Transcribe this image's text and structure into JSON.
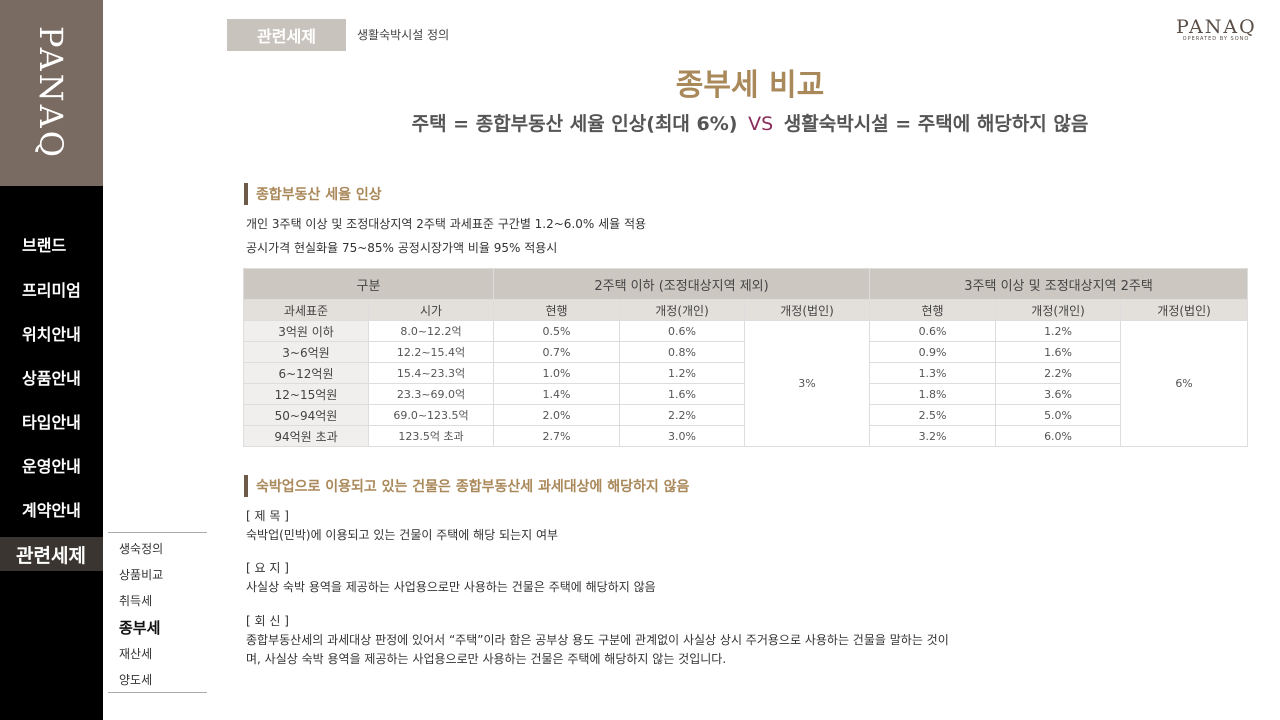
{
  "sidebar": {
    "logo": "PANAQ",
    "items": [
      {
        "label": "브랜드"
      },
      {
        "label": "프리미엄"
      },
      {
        "label": "위치안내"
      },
      {
        "label": "상품안내"
      },
      {
        "label": "타입안내"
      },
      {
        "label": "운영안내"
      },
      {
        "label": "계약안내"
      },
      {
        "label": "관련세제",
        "active": true
      }
    ]
  },
  "submenu": {
    "items": [
      {
        "label": "생숙정의"
      },
      {
        "label": "상품비교"
      },
      {
        "label": "취득세"
      },
      {
        "label": "종부세",
        "active": true
      },
      {
        "label": "재산세"
      },
      {
        "label": "양도세"
      }
    ]
  },
  "header": {
    "tag": "관련세제",
    "sub": "생활숙박시설 정의",
    "brand": "PANAQ",
    "brand_sub": "OPERATED BY SONO"
  },
  "main": {
    "title": "종부세 비교",
    "subtitle_left": "주택 = 종합부동산 세율 인상(최대 6%)",
    "subtitle_vs": "VS",
    "subtitle_right": "생활숙박시설 = 주택에 해당하지 않음",
    "section1": {
      "heading": "종합부동산 세율 인상",
      "line1": "개인 3주택 이상 및 조정대상지역 2주택 과세표준 구간별 1.2~6.0% 세율 적용",
      "line2": "공시가격 현실화율 75~85% 공정시장가액 비율 95% 적용시"
    },
    "table": {
      "group_header": "구분",
      "group_a": "2주택 이하 (조정대상지역 제외)",
      "group_b": "3주택 이상 및 조정대상지역 2주택",
      "sub_headers": [
        "과세표준",
        "시가",
        "현행",
        "개정(개인)",
        "개정(법인)",
        "현행",
        "개정(개인)",
        "개정(법인)"
      ],
      "rows": [
        {
          "base": "3억원 이하",
          "price": "8.0~12.2억",
          "a_cur": "0.5%",
          "a_ind": "0.6%",
          "b_cur": "0.6%",
          "b_ind": "1.2%"
        },
        {
          "base": "3~6억원",
          "price": "12.2~15.4억",
          "a_cur": "0.7%",
          "a_ind": "0.8%",
          "b_cur": "0.9%",
          "b_ind": "1.6%"
        },
        {
          "base": "6~12억원",
          "price": "15.4~23.3억",
          "a_cur": "1.0%",
          "a_ind": "1.2%",
          "b_cur": "1.3%",
          "b_ind": "2.2%"
        },
        {
          "base": "12~15억원",
          "price": "23.3~69.0억",
          "a_cur": "1.4%",
          "a_ind": "1.6%",
          "b_cur": "1.8%",
          "b_ind": "3.6%"
        },
        {
          "base": "50~94억원",
          "price": "69.0~123.5억",
          "a_cur": "2.0%",
          "a_ind": "2.2%",
          "b_cur": "2.5%",
          "b_ind": "5.0%"
        },
        {
          "base": "94억원 초과",
          "price": "123.5억 초과",
          "a_cur": "2.7%",
          "a_ind": "3.0%",
          "b_cur": "3.2%",
          "b_ind": "6.0%"
        }
      ],
      "a_corp": "3%",
      "b_corp": "6%"
    },
    "section2": {
      "heading": "숙박업으로 이용되고 있는 건물은 종합부동산세 과세대상에 해당하지 않음",
      "subject_label": "[ 제 목 ]",
      "subject_text": "숙박업(민박)에 이용되고 있는 건물이 주택에 해당 되는지 여부",
      "summary_label": "[ 요 지 ]",
      "summary_text": "사실상 숙박  용역을 제공하는 사업용으로만 사용하는 건물은 주택에 해당하지 않음",
      "reply_label": "[ 회 신 ]",
      "reply_line1": "종합부동산세의 과세대상 판정에 있어서  “주택”이라 함은 공부상 용도 구분에 관계없이 사실상 상시 주거용으로 사용하는 건물을 말하는 것이",
      "reply_line2": "며, 사실상 숙박 용역을 제공하는 사업용으로만 사용하는 건물은 주택에 해당하지 않는 것입니다."
    }
  }
}
